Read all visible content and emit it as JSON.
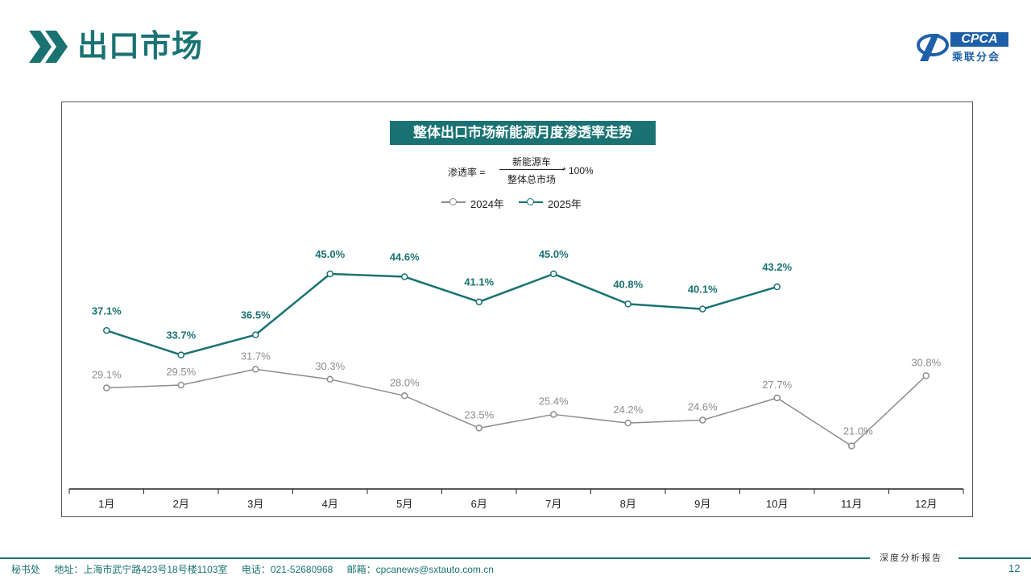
{
  "header": {
    "title": "出口市场",
    "logo_text": "CPCA",
    "logo_sub": "乘联分会"
  },
  "chart_heading": "整体出口市场新能源月度渗透率走势",
  "formula": {
    "left": "渗透率 =",
    "numerator": "新能源车",
    "denominator": "整体总市场",
    "right": "* 100%"
  },
  "colors": {
    "brand": "#1a7272",
    "series_2024": "#8c8c8c",
    "series_2025": "#1a7272"
  },
  "chart_data": {
    "type": "line",
    "title": "整体出口市场新能源月度渗透率走势",
    "categories": [
      "1月",
      "2月",
      "3月",
      "4月",
      "5月",
      "6月",
      "7月",
      "8月",
      "9月",
      "10月",
      "11月",
      "12月"
    ],
    "series": [
      {
        "name": "2024年",
        "values": [
          29.1,
          29.5,
          31.7,
          30.3,
          28.0,
          23.5,
          25.4,
          24.2,
          24.6,
          27.7,
          21.0,
          30.8
        ],
        "labels": [
          "29.1%",
          "29.5%",
          "31.7%",
          "30.3%",
          "28.0%",
          "23.5%",
          "25.4%",
          "24.2%",
          "24.6%",
          "27.7%",
          "21.0%",
          "30.8%"
        ]
      },
      {
        "name": "2025年",
        "values": [
          37.1,
          33.7,
          36.5,
          45.0,
          44.6,
          41.1,
          45.0,
          40.8,
          40.1,
          43.2,
          null,
          null
        ],
        "labels": [
          "37.1%",
          "33.7%",
          "36.5%",
          "45.0%",
          "44.6%",
          "41.1%",
          "45.0%",
          "40.8%",
          "40.1%",
          "43.2%",
          "",
          ""
        ]
      }
    ],
    "xlabel": "",
    "ylabel": "",
    "y_unit": "%",
    "legend": "top-center",
    "grid": false
  },
  "footer": {
    "office": "秘书处",
    "address": "地址：上海市武宁路423号18号楼1103室",
    "phone": "电话：021-52680968",
    "email": "邮箱：cpcanews@sxtauto.com.cn",
    "tag": "深度分析报告",
    "page_number": "12"
  }
}
